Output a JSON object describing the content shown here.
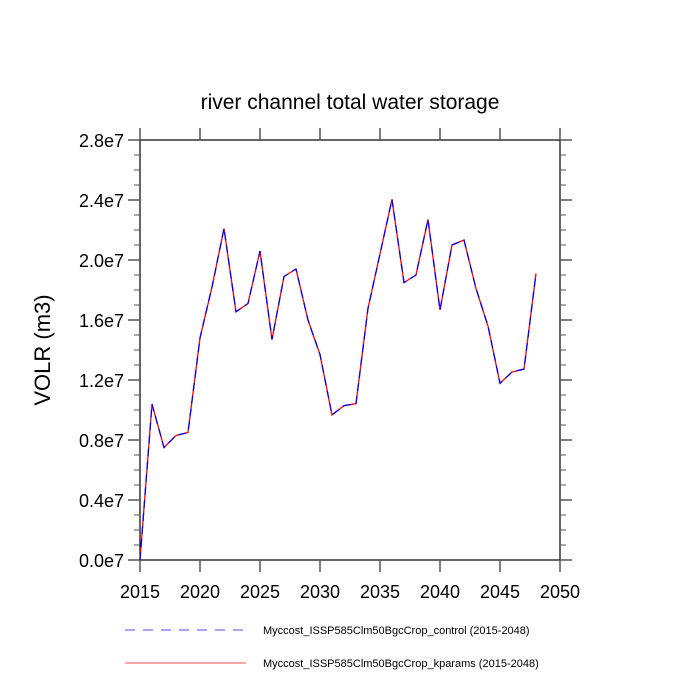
{
  "chart_data": {
    "type": "line",
    "title": "river channel total water storage",
    "xlabel": "",
    "ylabel": "VOLR  (m3)",
    "xlim": [
      2015,
      2050
    ],
    "ylim": [
      0,
      28000000
    ],
    "x_ticks": [
      2015,
      2020,
      2025,
      2030,
      2035,
      2040,
      2045,
      2050
    ],
    "x_tick_labels": [
      "2015",
      "2020",
      "2025",
      "2030",
      "2035",
      "2040",
      "2045",
      "2050"
    ],
    "y_ticks": [
      0,
      4000000,
      8000000,
      12000000,
      16000000,
      20000000,
      24000000,
      28000000
    ],
    "y_tick_labels": [
      "0.0e7",
      "0.4e7",
      "0.8e7",
      "1.2e7",
      "1.6e7",
      "2.0e7",
      "2.4e7",
      "2.8e7"
    ],
    "grid": false,
    "legend_placement": "bottom",
    "x": [
      2015,
      2016,
      2017,
      2018,
      2019,
      2020,
      2021,
      2022,
      2023,
      2024,
      2025,
      2026,
      2027,
      2028,
      2029,
      2030,
      2031,
      2032,
      2033,
      2034,
      2035,
      2036,
      2037,
      2038,
      2039,
      2040,
      2041,
      2042,
      2043,
      2044,
      2045,
      2046,
      2047,
      2048
    ],
    "series": [
      {
        "name": "Myccost_ISSP585Clm50BgcCrop_control (2015-2048)",
        "color": "#0000ff",
        "style": "dashed",
        "values": [
          0,
          10400000,
          7500000,
          8300000,
          8500000,
          14800000,
          18200000,
          22100000,
          16550000,
          17100000,
          20600000,
          14700000,
          18900000,
          19400000,
          16000000,
          13700000,
          9670000,
          10290000,
          10420000,
          16780000,
          20400000,
          24040000,
          18500000,
          19000000,
          22700000,
          16670000,
          21000000,
          21330000,
          18100000,
          15600000,
          11780000,
          12530000,
          12730000,
          19100000
        ]
      },
      {
        "name": "Myccost_ISSP585Clm50BgcCrop_kparams (2015-2048)",
        "color": "#ff0000",
        "style": "solid",
        "values": [
          0,
          10400000,
          7500000,
          8300000,
          8500000,
          14800000,
          18200000,
          22100000,
          16550000,
          17100000,
          20600000,
          14700000,
          18900000,
          19400000,
          16000000,
          13700000,
          9670000,
          10290000,
          10420000,
          16780000,
          20400000,
          24040000,
          18500000,
          19000000,
          22700000,
          16670000,
          21000000,
          21330000,
          18100000,
          15600000,
          11780000,
          12530000,
          12730000,
          19100000
        ]
      }
    ]
  }
}
